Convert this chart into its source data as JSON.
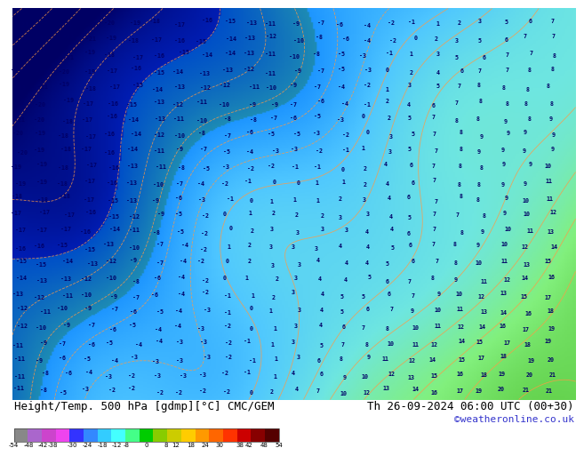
{
  "title_left": "Height/Temp. 500 hPa [gdmp][°C] CMC/GEM",
  "title_right": "Th 26-09-2024 06:00 UTC (00+30)",
  "credit": "©weatheronline.co.uk",
  "colorbar_labels": [
    "-54",
    "-48",
    "-42",
    "-38",
    "-30",
    "-24",
    "-18",
    "-12",
    "-8",
    "0",
    "8",
    "12",
    "18",
    "24",
    "30",
    "38",
    "42",
    "48",
    "54"
  ],
  "colorbar_colors": [
    "#888888",
    "#aa66cc",
    "#cc44cc",
    "#ee44ee",
    "#3333ff",
    "#3388ff",
    "#33ccff",
    "#44ffff",
    "#44ff88",
    "#00cc00",
    "#88cc00",
    "#cccc00",
    "#ffcc00",
    "#ff9900",
    "#ff6600",
    "#ff3300",
    "#cc0000",
    "#880000",
    "#550000"
  ],
  "label_color_left": "#000000",
  "label_color_right": "#000000",
  "credit_color": "#3333cc",
  "title_fontsize": 9,
  "credit_fontsize": 8
}
